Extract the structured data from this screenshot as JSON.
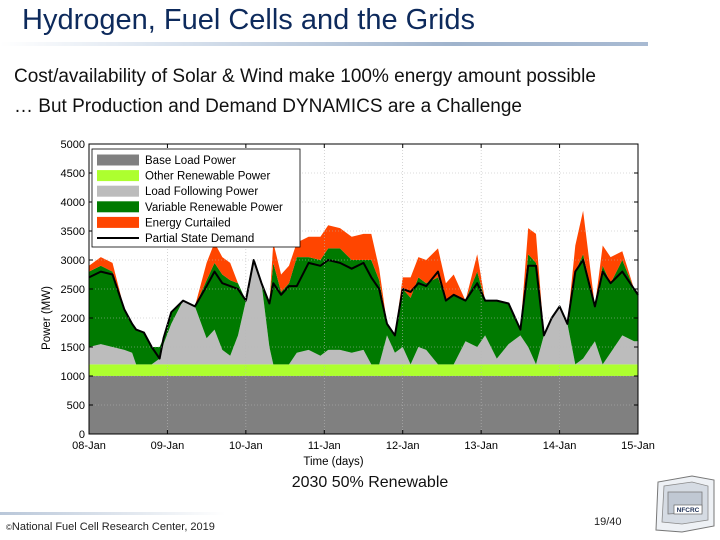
{
  "slide": {
    "title": "Hydrogen, Fuel Cells and the Grids",
    "subtitle_line1": "Cost/availability of Solar & Wind make 100% energy amount possible",
    "subtitle_line2": "… But Production and Demand DYNAMICS are a Challenge",
    "caption": "2030 50% Renewable",
    "credit_symbol": "©",
    "credit": "National Fuel Cell Research Center, 2019",
    "page_number": "19/40",
    "logo_text": "NFCRC"
  },
  "colors": {
    "base": "#808080",
    "other_renewable": "#adff2f",
    "load_following": "#bcbcbc",
    "variable_renewable": "#007a00",
    "curtailed": "#ff4500",
    "demand_line": "#000000",
    "title": "#0d2a5c"
  },
  "chart_data": {
    "type": "area",
    "title": "",
    "xlabel": "Time (days)",
    "ylabel": "Power (MW)",
    "ylim": [
      0,
      5000
    ],
    "xlim": [
      0,
      7
    ],
    "yticks": [
      0,
      500,
      1000,
      1500,
      2000,
      2500,
      3000,
      3500,
      4000,
      4500,
      5000
    ],
    "xtick_values": [
      0,
      1,
      2,
      3,
      4,
      5,
      6,
      7
    ],
    "xtick_labels": [
      "08-Jan",
      "09-Jan",
      "10-Jan",
      "11-Jan",
      "12-Jan",
      "13-Jan",
      "14-Jan",
      "15-Jan"
    ],
    "legend_position": "top-left",
    "series_names": [
      "Base Load Power",
      "Other Renewable Power",
      "Load Following Power",
      "Variable Renewable Power",
      "Energy Curtailed",
      "Partial State Demand"
    ],
    "stack_series": [
      "base",
      "other_renewable",
      "load_following",
      "variable_renewable",
      "curtailed"
    ],
    "stack_colors": [
      "#808080",
      "#adff2f",
      "#bcbcbc",
      "#007a00",
      "#ff4500"
    ],
    "x": [
      0,
      0.15,
      0.3,
      0.45,
      0.55,
      0.6,
      0.7,
      0.8,
      0.9,
      0.95,
      1.05,
      1.2,
      1.35,
      1.5,
      1.6,
      1.7,
      1.8,
      1.9,
      2.0,
      2.1,
      2.2,
      2.3,
      2.35,
      2.45,
      2.55,
      2.65,
      2.8,
      2.95,
      3.05,
      3.2,
      3.35,
      3.5,
      3.6,
      3.7,
      3.8,
      3.9,
      4.0,
      4.1,
      4.2,
      4.3,
      4.45,
      4.55,
      4.65,
      4.8,
      4.95,
      5.05,
      5.2,
      5.35,
      5.5,
      5.6,
      5.7,
      5.8,
      5.9,
      6.0,
      6.1,
      6.2,
      6.3,
      6.45,
      6.55,
      6.65,
      6.8,
      6.95,
      7.0
    ],
    "base": [
      1000,
      1000,
      1000,
      1000,
      1000,
      1000,
      1000,
      1000,
      1000,
      1000,
      1000,
      1000,
      1000,
      1000,
      1000,
      1000,
      1000,
      1000,
      1000,
      1000,
      1000,
      1000,
      1000,
      1000,
      1000,
      1000,
      1000,
      1000,
      1000,
      1000,
      1000,
      1000,
      1000,
      1000,
      1000,
      1000,
      1000,
      1000,
      1000,
      1000,
      1000,
      1000,
      1000,
      1000,
      1000,
      1000,
      1000,
      1000,
      1000,
      1000,
      1000,
      1000,
      1000,
      1000,
      1000,
      1000,
      1000,
      1000,
      1000,
      1000,
      1000,
      1000,
      1000
    ],
    "other_renewable": [
      200,
      200,
      200,
      200,
      200,
      200,
      200,
      200,
      200,
      200,
      200,
      200,
      200,
      200,
      200,
      200,
      200,
      200,
      200,
      200,
      200,
      200,
      200,
      200,
      200,
      200,
      200,
      200,
      200,
      200,
      200,
      200,
      200,
      200,
      200,
      200,
      200,
      200,
      200,
      200,
      200,
      200,
      200,
      200,
      200,
      200,
      200,
      200,
      200,
      200,
      200,
      200,
      200,
      200,
      200,
      200,
      200,
      200,
      200,
      200,
      200,
      200,
      200
    ],
    "load_following": [
      300,
      350,
      300,
      250,
      200,
      0,
      0,
      0,
      100,
      350,
      700,
      1100,
      1000,
      450,
      600,
      250,
      150,
      500,
      1100,
      1800,
      1400,
      300,
      0,
      0,
      0,
      200,
      250,
      150,
      250,
      250,
      200,
      250,
      0,
      0,
      500,
      200,
      300,
      0,
      300,
      250,
      0,
      0,
      0,
      400,
      300,
      500,
      100,
      350,
      500,
      300,
      0,
      500,
      800,
      1000,
      700,
      0,
      100,
      400,
      0,
      200,
      500,
      400,
      400
    ],
    "variable_renewable": [
      1300,
      1350,
      1300,
      700,
      500,
      600,
      550,
      300,
      200,
      100,
      200,
      0,
      0,
      1000,
      1150,
      1300,
      1300,
      900,
      0,
      0,
      0,
      750,
      1750,
      1250,
      1400,
      1650,
      1600,
      1650,
      1750,
      1750,
      1600,
      1550,
      1800,
      1450,
      200,
      300,
      1000,
      1150,
      1200,
      1150,
      1500,
      1100,
      1200,
      700,
      1300,
      600,
      1000,
      700,
      100,
      1600,
      1750,
      0,
      0,
      0,
      0,
      1600,
      1800,
      600,
      1700,
      1200,
      1300,
      900,
      800
    ],
    "curtailed": [
      100,
      150,
      150,
      0,
      0,
      0,
      0,
      0,
      0,
      0,
      0,
      0,
      0,
      300,
      350,
      300,
      300,
      0,
      0,
      0,
      0,
      0,
      350,
      300,
      300,
      250,
      350,
      400,
      400,
      350,
      400,
      450,
      450,
      200,
      0,
      0,
      200,
      350,
      350,
      400,
      500,
      300,
      350,
      0,
      300,
      0,
      0,
      0,
      0,
      450,
      500,
      0,
      0,
      0,
      0,
      450,
      750,
      0,
      350,
      450,
      150,
      0,
      0
    ],
    "demand": [
      2700,
      2800,
      2750,
      2150,
      1900,
      1800,
      1750,
      1500,
      1300,
      1650,
      2100,
      2300,
      2200,
      2550,
      2800,
      2600,
      2550,
      2500,
      2300,
      3000,
      2600,
      2250,
      2600,
      2400,
      2550,
      2550,
      2950,
      2900,
      3000,
      2950,
      2850,
      2950,
      2700,
      2500,
      1900,
      1700,
      2500,
      2450,
      2600,
      2550,
      2800,
      2300,
      2400,
      2300,
      2600,
      2300,
      2300,
      2250,
      1800,
      2900,
      2900,
      1700,
      2000,
      2200,
      1900,
      2800,
      3000,
      2200,
      2800,
      2600,
      2800,
      2500,
      2400
    ]
  }
}
